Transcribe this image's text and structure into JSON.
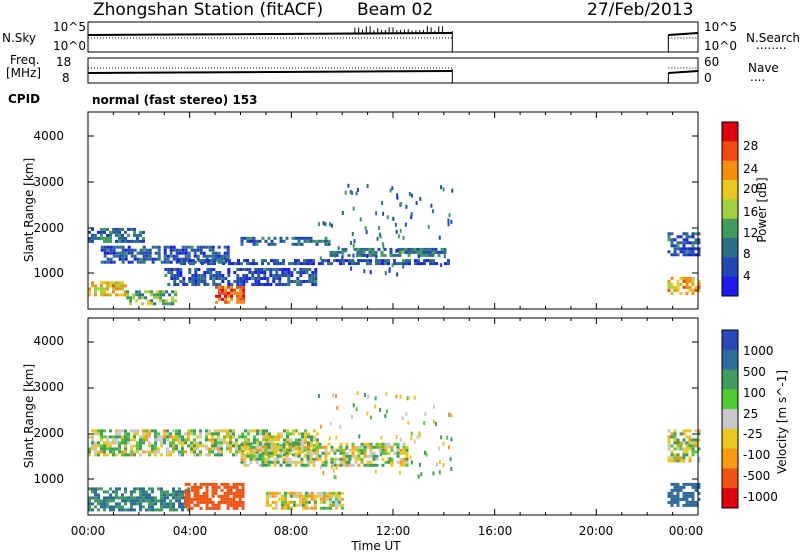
{
  "header": {
    "station": "Zhongshan Station (fitACF)",
    "beam": "Beam 02",
    "date": "27/Feb/2013"
  },
  "noise_panel": {
    "left_label": "N.Sky",
    "left_ticks": [
      "10^5",
      "10^0"
    ],
    "right_ticks": [
      "10^5",
      "10^0"
    ],
    "right_label": "N.Search",
    "right_legend": "........"
  },
  "freq_panel": {
    "left_label_1": "Freq.",
    "left_label_2": "[MHz]",
    "left_ticks": [
      "18",
      "8"
    ],
    "right_ticks": [
      "60",
      "0"
    ],
    "right_label": "Nave",
    "right_legend": "...."
  },
  "cpid": {
    "label": "CPID",
    "mode": "normal (fast stereo) 153"
  },
  "power_panel": {
    "ylabel": "Slant Range [km]",
    "yticks": [
      "4000",
      "3000",
      "2000",
      "1000"
    ],
    "colorbar_label": "Power [dB]",
    "colorbar_ticks": [
      "28",
      "24",
      "20",
      "16",
      "12",
      "8",
      "4"
    ],
    "colorbar_colors": [
      "#e10010",
      "#f24a10",
      "#fa8c0c",
      "#e8c81e",
      "#9fd23c",
      "#3e9c5c",
      "#2d6e8c",
      "#1f47b8",
      "#1c1cf0"
    ]
  },
  "velocity_panel": {
    "ylabel": "Slant Range [km]",
    "yticks": [
      "4000",
      "3000",
      "2000",
      "1000"
    ],
    "colorbar_label": "Velocity [m s^-1]",
    "colorbar_ticks": [
      "1000",
      "500",
      "100",
      "25",
      "-25",
      "-100",
      "-500",
      "-1000"
    ],
    "colorbar_colors": [
      "#2848b8",
      "#2f6c9c",
      "#3e9c5c",
      "#4fcc34",
      "#c8c8c8",
      "#e8c81e",
      "#fa9a10",
      "#f25210",
      "#e10010"
    ]
  },
  "xaxis": {
    "label": "Time UT",
    "ticks": [
      "00:00",
      "04:00",
      "08:00",
      "12:00",
      "16:00",
      "20:00",
      "00:00"
    ]
  },
  "chart_data": [
    {
      "type": "line",
      "title": "Zhongshan Station (fitACF)",
      "ylabel": "N.Sky",
      "x_range": [
        "00:00",
        "24:00"
      ],
      "y_scale": "log",
      "ylim": [
        1,
        100000
      ],
      "series": [
        {
          "name": "N.Sky",
          "segments": [
            [
              "00:00",
              "14:20"
            ],
            [
              "22:50",
              "24:00"
            ]
          ],
          "approx_level": 10000
        },
        {
          "name": "N.Search",
          "segments": [
            [
              "00:00",
              "14:20"
            ],
            [
              "22:50",
              "24:00"
            ]
          ],
          "approx_level": 5000
        }
      ]
    },
    {
      "type": "line",
      "ylabel": "Freq. [MHz]",
      "ylim": [
        8,
        18
      ],
      "series": [
        {
          "name": "Freq.",
          "segments": [
            [
              "00:00",
              "14:20"
            ],
            [
              "22:50",
              "24:00"
            ]
          ],
          "approx_level": 10
        },
        {
          "name": "Nave",
          "segments": [
            [
              "00:00",
              "14:20"
            ],
            [
              "22:50",
              "24:00"
            ]
          ],
          "approx_level": 30
        }
      ]
    },
    {
      "type": "heatmap",
      "ylabel": "Slant Range [km]",
      "xlabel": "Time UT",
      "ylim": [
        180,
        4600
      ],
      "colorbar": {
        "label": "Power [dB]",
        "range": [
          0,
          32
        ],
        "ticks": [
          4,
          8,
          12,
          16,
          20,
          24,
          28
        ]
      },
      "patches": [
        {
          "t0": 0.0,
          "t1": 2.2,
          "r0": 1700,
          "r1": 2000,
          "value": 8
        },
        {
          "t0": 0.5,
          "t1": 5.5,
          "r0": 1200,
          "r1": 1600,
          "value": 6
        },
        {
          "t0": 3.5,
          "t1": 14.2,
          "r0": 1200,
          "r1": 1300,
          "value": 6
        },
        {
          "t0": 6.0,
          "t1": 9.5,
          "r0": 1600,
          "r1": 1800,
          "value": 8
        },
        {
          "t0": 9.5,
          "t1": 14.0,
          "r0": 1350,
          "r1": 1550,
          "value": 10
        },
        {
          "t0": 0.0,
          "t1": 1.5,
          "r0": 500,
          "r1": 800,
          "value": 20
        },
        {
          "t0": 1.5,
          "t1": 3.5,
          "r0": 300,
          "r1": 600,
          "value": 14
        },
        {
          "t0": 5.0,
          "t1": 6.1,
          "r0": 300,
          "r1": 700,
          "value": 26
        },
        {
          "t0": 3.0,
          "t1": 9.0,
          "r0": 700,
          "r1": 1100,
          "value": 6
        },
        {
          "t0": 22.8,
          "t1": 24.0,
          "r0": 500,
          "r1": 900,
          "value": 22
        },
        {
          "t0": 22.8,
          "t1": 24.0,
          "r0": 1400,
          "r1": 1900,
          "value": 6
        }
      ]
    },
    {
      "type": "heatmap",
      "ylabel": "Slant Range [km]",
      "xlabel": "Time UT",
      "ylim": [
        180,
        4600
      ],
      "colorbar": {
        "label": "Velocity [m s^-1]",
        "ticks": [
          -1000,
          -500,
          -100,
          -25,
          25,
          100,
          500,
          1000
        ]
      },
      "patches": [
        {
          "t0": 0.0,
          "t1": 9.0,
          "r0": 1500,
          "r1": 2100,
          "value": 0
        },
        {
          "t0": 0.0,
          "t1": 4.0,
          "r0": 300,
          "r1": 800,
          "value": 300
        },
        {
          "t0": 3.8,
          "t1": 6.1,
          "r0": 300,
          "r1": 900,
          "value": -500
        },
        {
          "t0": 6.0,
          "t1": 12.5,
          "r0": 1300,
          "r1": 1800,
          "value": 0
        },
        {
          "t0": 7.0,
          "t1": 10.0,
          "r0": 300,
          "r1": 700,
          "value": -50
        },
        {
          "t0": 22.8,
          "t1": 24.0,
          "r0": 400,
          "r1": 900,
          "value": 500
        },
        {
          "t0": 22.8,
          "t1": 24.0,
          "r0": 1400,
          "r1": 2100,
          "value": 0
        }
      ]
    }
  ]
}
